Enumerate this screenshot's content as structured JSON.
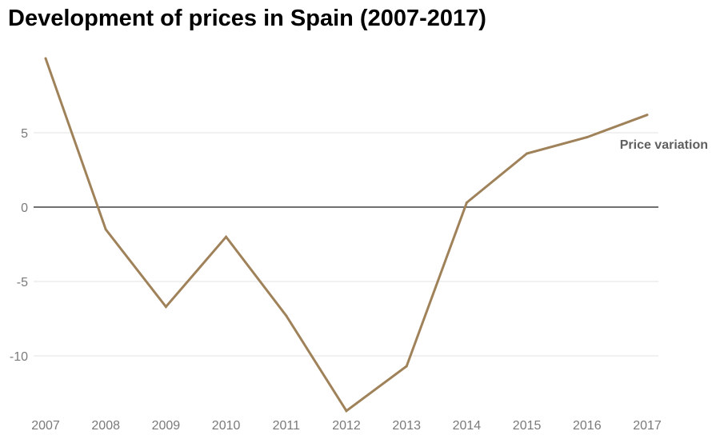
{
  "chart_data": {
    "type": "line",
    "title": "Development of prices in Spain (2007-2017)",
    "xlabel": "",
    "ylabel": "",
    "x": [
      "2007",
      "2008",
      "2009",
      "2010",
      "2011",
      "2012",
      "2013",
      "2014",
      "2015",
      "2016",
      "2017"
    ],
    "y_ticks": [
      5,
      0,
      -5,
      -10
    ],
    "y_tick_labels": [
      "5",
      "0",
      "-5",
      "-10"
    ],
    "ylim": [
      -14,
      10
    ],
    "grid": true,
    "zero_line": true,
    "series": [
      {
        "name": "Price variation",
        "color": "#a0825a",
        "values": [
          10.0,
          -1.5,
          -6.7,
          -2.0,
          -7.3,
          -13.7,
          -10.7,
          0.3,
          3.6,
          4.7,
          6.2
        ]
      }
    ]
  }
}
